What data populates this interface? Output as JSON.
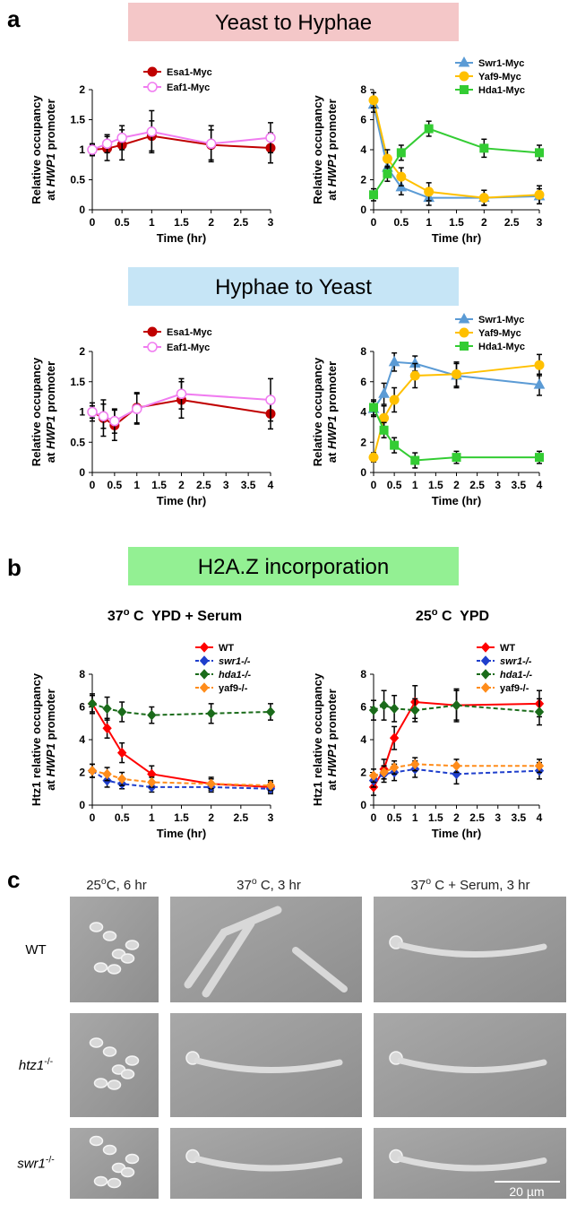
{
  "panel_letters": [
    "a",
    "b",
    "c"
  ],
  "banners": [
    "Yeast to Hyphae",
    "Hyphae to Yeast",
    "H2A.Z incorporation"
  ],
  "chart_data": [
    {
      "type": "line",
      "ylabel": [
        "Relative occupancy",
        "at ",
        "HWP1",
        " promoter"
      ],
      "xlabel": "Time (hr)",
      "x": [
        0,
        0.25,
        0.5,
        1,
        2,
        3
      ],
      "xlim": [
        0,
        3
      ],
      "xticks": [
        0,
        0.5,
        1,
        1.5,
        2,
        2.5,
        3
      ],
      "ylim": [
        0,
        2
      ],
      "yticks": [
        0,
        0.5,
        1,
        1.5,
        2
      ],
      "series": [
        {
          "name": "Esa1-Myc",
          "color": "#c00000",
          "marker": "circle",
          "values": [
            1,
            1.02,
            1.08,
            1.23,
            1.08,
            1.03
          ],
          "errors": [
            0.1,
            0.2,
            0.25,
            0.25,
            0.25,
            0.25
          ]
        },
        {
          "name": "Eaf1-Myc",
          "color": "#f07cf0",
          "marker": "circle-open",
          "values": [
            1,
            1.1,
            1.2,
            1.3,
            1.1,
            1.2
          ],
          "errors": [
            0.08,
            0.15,
            0.2,
            0.35,
            0.3,
            0.25
          ]
        }
      ]
    },
    {
      "type": "line",
      "ylabel": [
        "Relative occupancy",
        "at ",
        "HWP1",
        " promoter"
      ],
      "xlabel": "Time (hr)",
      "x": [
        0,
        0.25,
        0.5,
        1,
        2,
        3
      ],
      "xlim": [
        0,
        3
      ],
      "xticks": [
        0,
        0.5,
        1,
        1.5,
        2,
        2.5,
        3
      ],
      "ylim": [
        0,
        8
      ],
      "yticks": [
        0,
        2,
        4,
        6,
        8
      ],
      "series": [
        {
          "name": "Swr1-Myc",
          "color": "#5b9bd5",
          "marker": "triangle",
          "values": [
            7.0,
            2.8,
            1.5,
            0.8,
            0.8,
            0.9
          ],
          "errors": [
            0.5,
            0.5,
            0.5,
            0.5,
            0.5,
            0.5
          ]
        },
        {
          "name": "Yaf9-Myc",
          "color": "#ffc000",
          "marker": "circle",
          "values": [
            7.3,
            3.4,
            2.2,
            1.2,
            0.8,
            1.0
          ],
          "errors": [
            0.5,
            0.6,
            0.6,
            0.6,
            0.5,
            0.6
          ]
        },
        {
          "name": "Hda1-Myc",
          "color": "#33cc33",
          "marker": "square",
          "values": [
            1.0,
            2.4,
            3.8,
            5.4,
            4.1,
            3.8
          ],
          "errors": [
            0.4,
            0.5,
            0.5,
            0.5,
            0.6,
            0.5
          ]
        }
      ]
    },
    {
      "type": "line",
      "ylabel": [
        "Relative occupancy",
        "at ",
        "HWP1",
        " promoter"
      ],
      "xlabel": "Time (hr)",
      "x": [
        0,
        0.25,
        0.5,
        1,
        2,
        4
      ],
      "xlim": [
        0,
        4
      ],
      "xticks": [
        0,
        0.5,
        1,
        1.5,
        2,
        2.5,
        3,
        3.5,
        4
      ],
      "ylim": [
        0,
        2
      ],
      "yticks": [
        0,
        0.5,
        1,
        1.5,
        2
      ],
      "series": [
        {
          "name": "Esa1-Myc",
          "color": "#c00000",
          "marker": "circle",
          "values": [
            1,
            0.9,
            0.78,
            1.07,
            1.2,
            0.97
          ],
          "errors": [
            0.15,
            0.3,
            0.25,
            0.25,
            0.3,
            0.25
          ]
        },
        {
          "name": "Eaf1-Myc",
          "color": "#f07cf0",
          "marker": "circle-open",
          "values": [
            1,
            0.93,
            0.85,
            1.05,
            1.3,
            1.2
          ],
          "errors": [
            0.1,
            0.2,
            0.2,
            0.25,
            0.25,
            0.35
          ]
        }
      ]
    },
    {
      "type": "line",
      "ylabel": [
        "Relative occupancy",
        "at ",
        "HWP1",
        " promoter"
      ],
      "xlabel": "Time (hr)",
      "x": [
        0,
        0.25,
        0.5,
        1,
        2,
        4
      ],
      "xlim": [
        0,
        4
      ],
      "xticks": [
        0,
        0.5,
        1,
        1.5,
        2,
        2.5,
        3,
        3.5,
        4
      ],
      "ylim": [
        0,
        8
      ],
      "yticks": [
        0,
        2,
        4,
        6,
        8
      ],
      "series": [
        {
          "name": "Swr1-Myc",
          "color": "#5b9bd5",
          "marker": "triangle",
          "values": [
            4.2,
            5.2,
            7.3,
            7.2,
            6.4,
            5.8
          ],
          "errors": [
            0.5,
            0.7,
            0.6,
            0.5,
            0.8,
            0.7
          ]
        },
        {
          "name": "Yaf9-Myc",
          "color": "#ffc000",
          "marker": "circle",
          "values": [
            1.0,
            3.6,
            4.8,
            6.4,
            6.5,
            7.1
          ],
          "errors": [
            0.3,
            0.8,
            0.8,
            0.8,
            0.8,
            0.7
          ]
        },
        {
          "name": "Hda1-Myc",
          "color": "#33cc33",
          "marker": "square",
          "values": [
            4.3,
            2.8,
            1.8,
            0.8,
            1.0,
            1.0
          ],
          "errors": [
            0.5,
            0.5,
            0.5,
            0.5,
            0.4,
            0.4
          ]
        }
      ]
    },
    {
      "type": "line",
      "title": [
        "37",
        "o",
        " C  YPD + Serum"
      ],
      "ylabel": [
        "Htz1 relative occupancy",
        "at ",
        "HWP1",
        " promoter"
      ],
      "xlabel": "Time (hr)",
      "x": [
        0,
        0.25,
        0.5,
        1,
        2,
        3
      ],
      "xlim": [
        0,
        3
      ],
      "xticks": [
        0,
        0.5,
        1,
        1.5,
        2,
        2.5,
        3
      ],
      "ylim": [
        0,
        8
      ],
      "yticks": [
        0,
        2,
        4,
        6,
        8
      ],
      "series": [
        {
          "name": "WT",
          "color": "#ff0000",
          "marker": "diamond",
          "values": [
            6.2,
            4.7,
            3.2,
            1.9,
            1.3,
            1.1
          ],
          "errors": [
            0.5,
            0.6,
            0.6,
            0.5,
            0.4,
            0.3
          ]
        },
        {
          "name": "swr1-/-",
          "color": "#1f3fcc",
          "marker": "diamond",
          "dash": true,
          "italic": true,
          "values": [
            2.1,
            1.5,
            1.3,
            1.1,
            1.1,
            1.0
          ],
          "errors": [
            0.4,
            0.4,
            0.3,
            0.3,
            0.3,
            0.3
          ]
        },
        {
          "name": "hda1-/-",
          "color": "#1a6b1a",
          "marker": "diamond",
          "dash": true,
          "italic": true,
          "values": [
            6.2,
            5.9,
            5.7,
            5.5,
            5.6,
            5.7
          ],
          "errors": [
            0.6,
            0.7,
            0.6,
            0.5,
            0.6,
            0.5
          ]
        },
        {
          "name": "yaf9-/-",
          "color": "#ff8c1a",
          "marker": "diamond",
          "dash": true,
          "values": [
            2.1,
            1.9,
            1.6,
            1.4,
            1.3,
            1.2
          ],
          "errors": [
            0.4,
            0.4,
            0.4,
            0.3,
            0.3,
            0.3
          ]
        }
      ]
    },
    {
      "type": "line",
      "title": [
        "25",
        "o",
        " C  YPD"
      ],
      "ylabel": [
        "Htz1 relative occupancy",
        "at ",
        "HWP1",
        " promoter"
      ],
      "xlabel": "Time (hr)",
      "x": [
        0,
        0.25,
        0.5,
        1,
        2,
        4
      ],
      "xlim": [
        0,
        4
      ],
      "xticks": [
        0,
        0.5,
        1,
        1.5,
        2,
        2.5,
        3,
        3.5,
        4
      ],
      "ylim": [
        0,
        8
      ],
      "yticks": [
        0,
        2,
        4,
        6,
        8
      ],
      "series": [
        {
          "name": "WT",
          "color": "#ff0000",
          "marker": "diamond",
          "values": [
            1.1,
            2.2,
            4.1,
            6.3,
            6.1,
            6.2
          ],
          "errors": [
            0.5,
            0.6,
            0.7,
            1.0,
            1.0,
            0.8
          ]
        },
        {
          "name": "swr1-/-",
          "color": "#1f3fcc",
          "marker": "diamond",
          "dash": true,
          "italic": true,
          "values": [
            1.5,
            1.9,
            2.0,
            2.2,
            1.9,
            2.1
          ],
          "errors": [
            0.4,
            0.5,
            0.5,
            0.5,
            0.6,
            0.5
          ]
        },
        {
          "name": "hda1-/-",
          "color": "#1a6b1a",
          "marker": "diamond",
          "dash": true,
          "italic": true,
          "values": [
            5.8,
            6.1,
            5.9,
            5.8,
            6.1,
            5.7
          ],
          "errors": [
            0.6,
            0.9,
            0.8,
            0.7,
            0.9,
            0.8
          ]
        },
        {
          "name": "yaf9-/-",
          "color": "#ff8c1a",
          "marker": "diamond",
          "dash": true,
          "values": [
            1.8,
            2.0,
            2.3,
            2.5,
            2.4,
            2.4
          ],
          "errors": [
            0.4,
            0.4,
            0.4,
            0.4,
            0.4,
            0.4
          ]
        }
      ]
    }
  ],
  "micrographs": {
    "columns": [
      [
        "25",
        "o",
        "C, 6 hr"
      ],
      [
        "37",
        "o",
        " C, 3 hr"
      ],
      [
        "37",
        "o",
        " C + Serum, 3 hr"
      ]
    ],
    "rows": [
      [
        "WT"
      ],
      [
        "htz1",
        "-/-"
      ],
      [
        "swr1",
        "-/-"
      ]
    ],
    "scale_bar": "20 µm"
  }
}
